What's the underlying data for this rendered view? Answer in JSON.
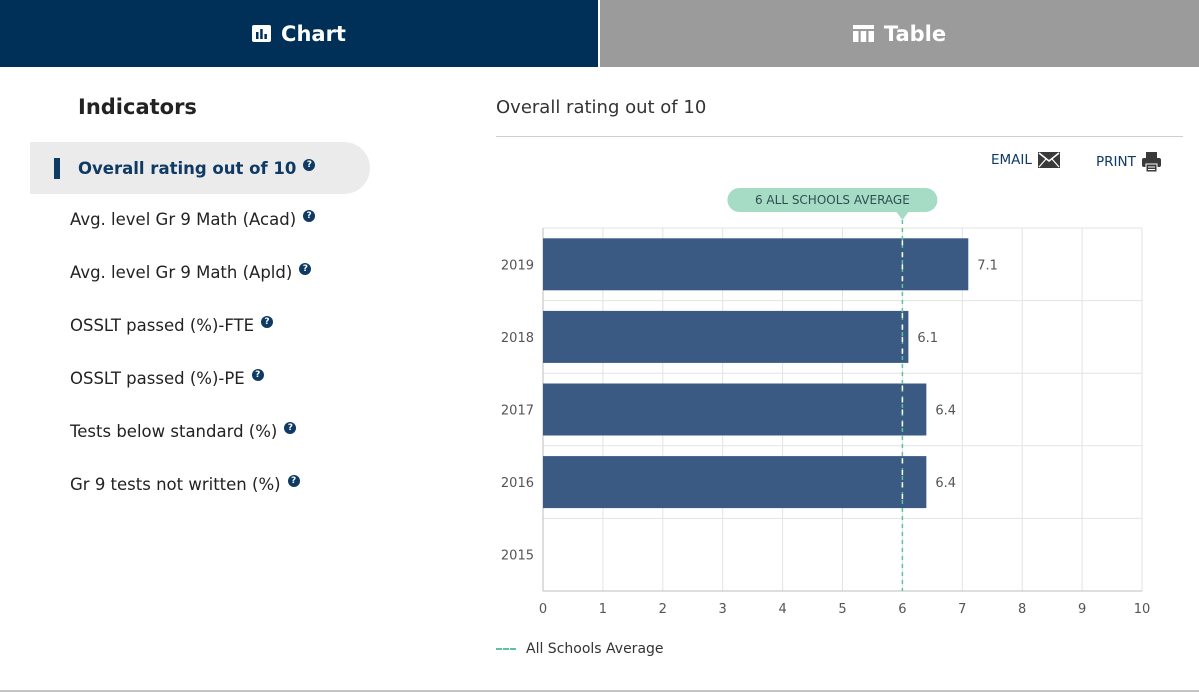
{
  "tabs": {
    "chart_label": "Chart",
    "table_label": "Table",
    "active": "Chart",
    "active_color": "#003057",
    "inactive_color": "#9b9b9b"
  },
  "sidebar": {
    "title": "Indicators",
    "items": [
      {
        "label": "Overall rating out of 10",
        "active": true
      },
      {
        "label": "Avg. level Gr 9 Math (Acad)",
        "active": false
      },
      {
        "label": "Avg. level Gr 9 Math (Apld)",
        "active": false
      },
      {
        "label": "OSSLT passed (%)-FTE",
        "active": false
      },
      {
        "label": "OSSLT passed (%)-PE",
        "active": false
      },
      {
        "label": "Tests below standard (%)",
        "active": false
      },
      {
        "label": "Gr 9 tests not written (%)",
        "active": false
      }
    ],
    "help_glyph": "?"
  },
  "main": {
    "title": "Overall rating out of 10",
    "email_label": "EMAIL",
    "print_label": "PRINT"
  },
  "chart_data": {
    "type": "bar",
    "orientation": "horizontal",
    "categories": [
      "2019",
      "2018",
      "2017",
      "2016",
      "2015"
    ],
    "values": [
      7.1,
      6.1,
      6.4,
      6.4,
      null
    ],
    "xlim": [
      0,
      10
    ],
    "xticks": [
      0,
      1,
      2,
      3,
      4,
      5,
      6,
      7,
      8,
      9,
      10
    ],
    "bar_color": "#3a5a84",
    "reference_line": {
      "value": 6,
      "label": "6 ALL SCHOOLS AVERAGE",
      "color": "#5cc39c",
      "callout_color": "#a6dcc6"
    },
    "legend": [
      {
        "name": "All Schools Average",
        "style": "dashed",
        "color": "#5cc39c"
      }
    ],
    "grid": true
  }
}
